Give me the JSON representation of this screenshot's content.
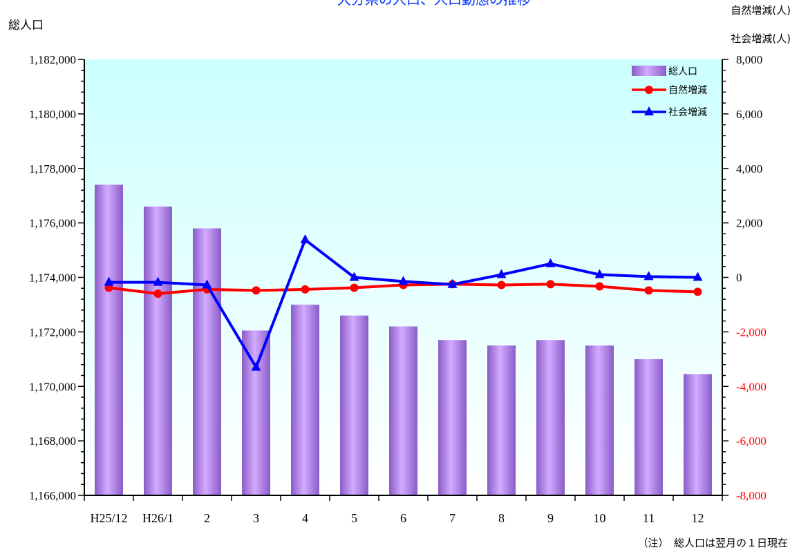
{
  "chart_data": {
    "type": "bar+line",
    "title": "大分県の人口、人口動態の推移",
    "left_axis_label": "総人口",
    "right_axis_labels": [
      "自然増減(人)",
      "社会増減(人)"
    ],
    "note": "（注）　総人口は翌月の１日現在",
    "categories": [
      "H25/12",
      "H26/1",
      "2",
      "3",
      "4",
      "5",
      "6",
      "7",
      "8",
      "9",
      "10",
      "11",
      "12"
    ],
    "left_axis": {
      "min": 1166000,
      "max": 1182000,
      "step": 2000,
      "tick_labels": [
        "1,166,000",
        "1,168,000",
        "1,170,000",
        "1,172,000",
        "1,174,000",
        "1,176,000",
        "1,178,000",
        "1,180,000",
        "1,182,000"
      ]
    },
    "right_axis": {
      "min": -8000,
      "max": 8000,
      "step": 2000,
      "tick_labels": [
        "-8,000",
        "-6,000",
        "-4,000",
        "-2,000",
        "0",
        "2,000",
        "4,000",
        "6,000",
        "8,000"
      ]
    },
    "series": [
      {
        "name": "総人口",
        "type": "bar",
        "axis": "left",
        "color": "#b98cf0",
        "values": [
          1177400,
          1176600,
          1175800,
          1172050,
          1173000,
          1172600,
          1172200,
          1171700,
          1171500,
          1171700,
          1171500,
          1171000,
          1170450
        ]
      },
      {
        "name": "自然増減",
        "type": "line",
        "axis": "right",
        "color": "#ff0000",
        "marker": "circle",
        "values": [
          -380,
          -600,
          -440,
          -480,
          -440,
          -380,
          -280,
          -250,
          -280,
          -250,
          -330,
          -480,
          -530
        ]
      },
      {
        "name": "社会増減",
        "type": "line",
        "axis": "right",
        "color": "#0000ff",
        "marker": "triangle",
        "values": [
          -180,
          -180,
          -280,
          -3300,
          1380,
          0,
          -150,
          -260,
          100,
          500,
          100,
          30,
          0
        ]
      }
    ]
  }
}
